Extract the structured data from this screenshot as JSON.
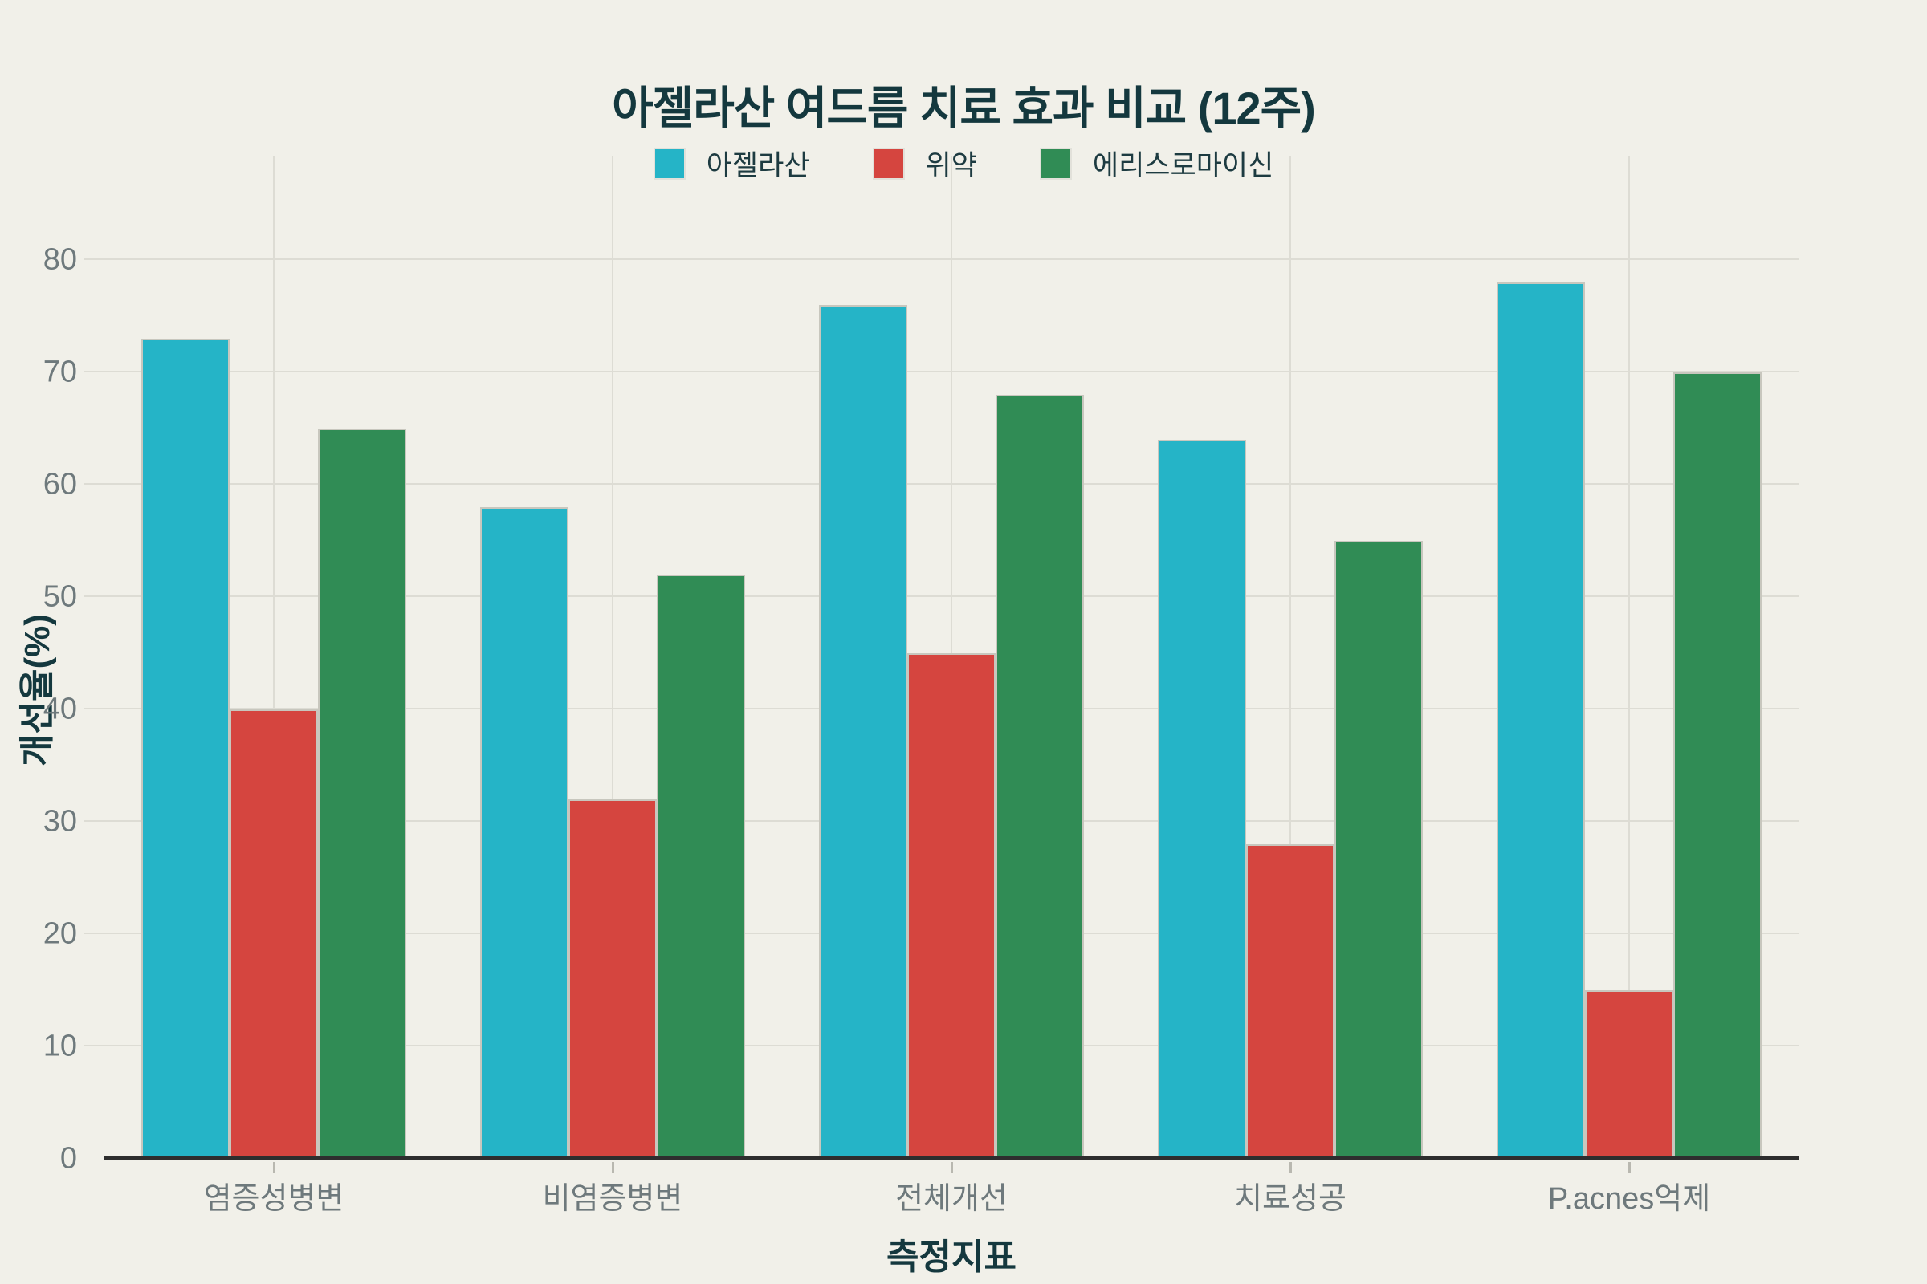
{
  "page": {
    "background": "#f1f0e9"
  },
  "chart_data": {
    "type": "bar",
    "title": "아젤라산 여드름 치료 효과 비교 (12주)",
    "categories": [
      "염증성병변",
      "비염증병변",
      "전체개선",
      "치료성공",
      "P.acnes억제"
    ],
    "series": [
      {
        "name": "아젤라산",
        "color": "#25b4c7",
        "values": [
          73,
          58,
          76,
          64,
          78
        ]
      },
      {
        "name": "위약",
        "color": "#d5453f",
        "values": [
          40,
          32,
          45,
          28,
          15
        ]
      },
      {
        "name": "에리스로마이신",
        "color": "#308c55",
        "values": [
          65,
          52,
          68,
          55,
          70
        ]
      }
    ],
    "xlabel": "측정지표",
    "ylabel": "개선율(%)",
    "y_ticks": [
      0,
      10,
      20,
      30,
      40,
      50,
      60,
      70,
      80
    ],
    "ylim": [
      0,
      89.2
    ],
    "grid": true,
    "legend_position": "top",
    "colors": {
      "background": "#f1f0e9",
      "gridline": "#dddcd4",
      "baseline": "#2e2e2e",
      "title_text": "#14383e",
      "tick_text": "#6e797c"
    }
  }
}
